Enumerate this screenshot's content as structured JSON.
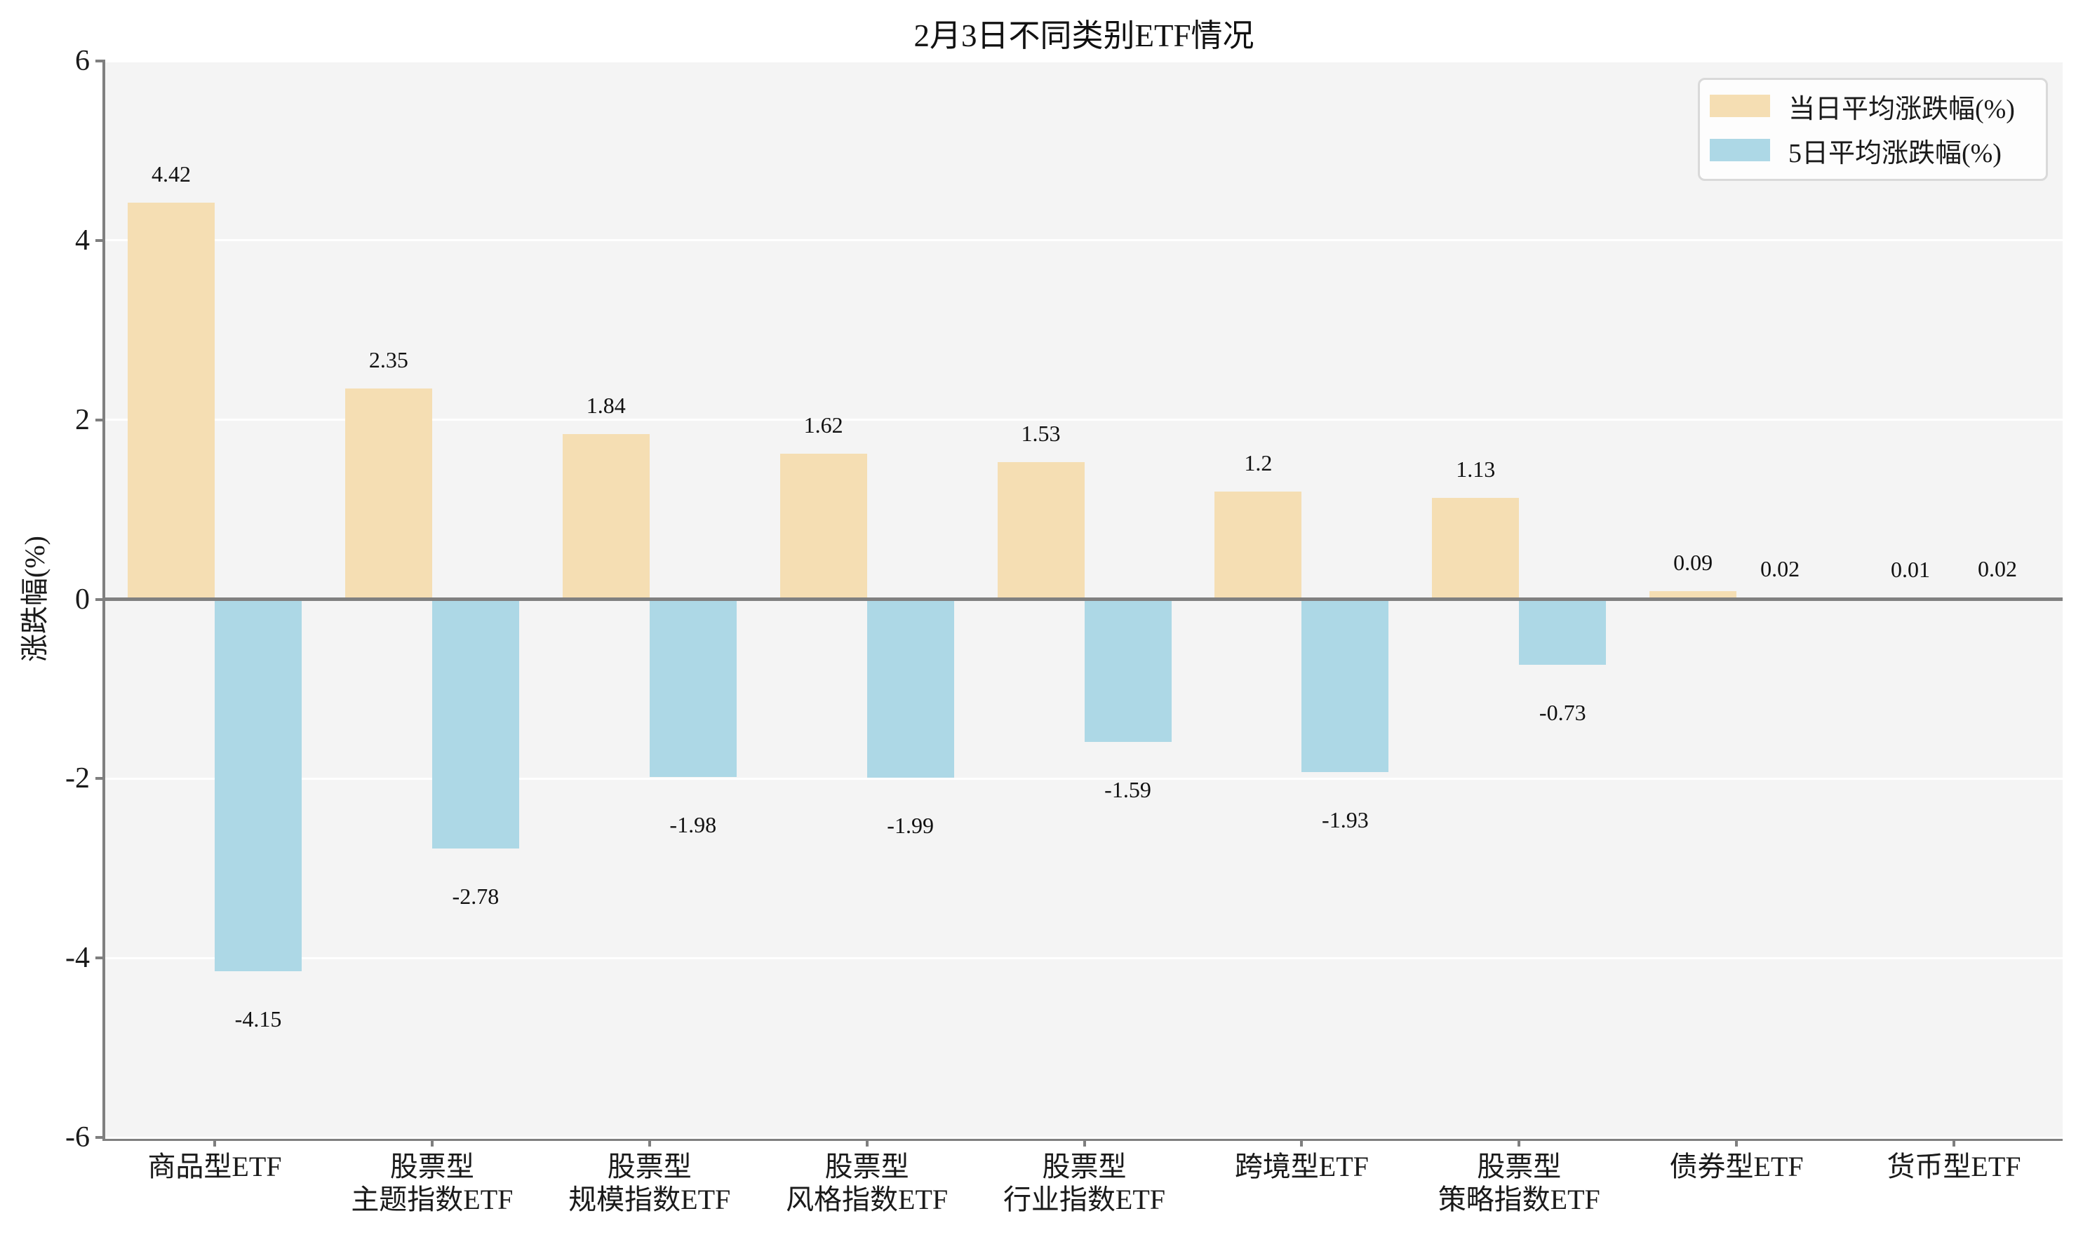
{
  "figure": {
    "title": "2月3日不同类别ETF情况",
    "ylabel": "涨跌幅(%)"
  },
  "legend": {
    "items": [
      {
        "label": "当日平均涨跌幅(%)",
        "color": "#F5DEB3"
      },
      {
        "label": "5日平均涨跌幅(%)",
        "color": "#ADD8E6"
      }
    ]
  },
  "chart_data": {
    "type": "bar",
    "title": "2月3日不同类别ETF情况",
    "xlabel": "",
    "ylabel": "涨跌幅(%)",
    "ylim": [
      -6,
      6
    ],
    "yticks": [
      6,
      4,
      2,
      0,
      -2,
      -4,
      -6
    ],
    "grid": "horizontal white gridlines on light gray plot background",
    "legend_position": "upper-right",
    "categories": [
      "商品型ETF",
      "股票型\n主题指数ETF",
      "股票型\n规模指数ETF",
      "股票型\n风格指数ETF",
      "股票型\n行业指数ETF",
      "跨境型ETF",
      "股票型\n策略指数ETF",
      "债券型ETF",
      "货币型ETF"
    ],
    "series": [
      {
        "name": "当日平均涨跌幅(%)",
        "key": "daily",
        "color": "#F5DEB3",
        "values": [
          4.42,
          2.35,
          1.84,
          1.62,
          1.53,
          1.2,
          1.13,
          0.09,
          0.01
        ],
        "labels": [
          "4.42",
          "2.35",
          "1.84",
          "1.62",
          "1.53",
          "1.2",
          "1.13",
          "0.09",
          "0.01"
        ]
      },
      {
        "name": "5日平均涨跌幅(%)",
        "key": "5day",
        "color": "#ADD8E6",
        "values": [
          -4.15,
          -2.78,
          -1.98,
          -1.99,
          -1.59,
          -1.93,
          -0.73,
          0.02,
          0.02
        ],
        "labels": [
          "-4.15",
          "-2.78",
          "-1.98",
          "-1.99",
          "-1.59",
          "-1.93",
          "-0.73",
          "0.02",
          "0.02"
        ]
      }
    ]
  },
  "colors": {
    "figure_bg": "#FFFFFF",
    "plot_bg": "#F4F4F4",
    "grid": "#FFFFFF",
    "spine": "#7F7F7F",
    "zero_line": "#808080",
    "text": "#1A1A1A",
    "legend_border": "#D9D9D9",
    "series_daily": "#F5DEB3",
    "series_5day": "#ADD8E6"
  }
}
